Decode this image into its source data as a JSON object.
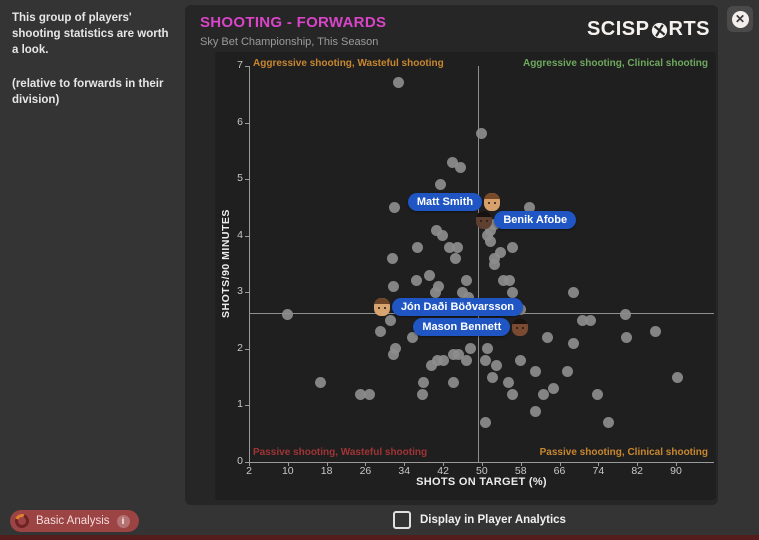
{
  "note": {
    "line1": "This group of players' shooting statistics are worth a look.",
    "line2": "(relative to forwards in their division)"
  },
  "header": {
    "title": "SHOOTING - FORWARDS",
    "subtitle": "Sky Bet Championship, This Season",
    "logo_left": "SCISP",
    "logo_right": "RTS",
    "close_glyph": "✕"
  },
  "chart_data": {
    "type": "scatter",
    "title": "SHOOTING - FORWARDS",
    "subtitle": "Sky Bet Championship, This Season",
    "xlabel": "SHOTS ON TARGET (%)",
    "ylabel": "SHOTS/90 MINUTES",
    "xlim": [
      2,
      97
    ],
    "ylim": [
      0,
      7
    ],
    "x_ticks": [
      2,
      10,
      18,
      26,
      34,
      42,
      50,
      58,
      66,
      74,
      82,
      90
    ],
    "y_ticks": [
      0,
      1,
      2,
      3,
      4,
      5,
      6,
      7
    ],
    "grid": false,
    "mean_lines": {
      "x": 49.1,
      "y": 2.64
    },
    "quadrants": {
      "top_left": "Aggressive shooting, Wasteful shooting",
      "top_right": "Aggressive shooting, Clinical shooting",
      "bottom_left": "Passive shooting, Wasteful shooting",
      "bottom_right": "Passive shooting, Clinical shooting"
    },
    "points": [
      [
        32.9,
        6.7
      ],
      [
        50.0,
        5.8
      ],
      [
        43.9,
        5.3
      ],
      [
        45.5,
        5.2
      ],
      [
        41.4,
        4.9
      ],
      [
        31.9,
        4.5
      ],
      [
        40.6,
        4.1
      ],
      [
        41.8,
        4.0
      ],
      [
        36.8,
        3.8
      ],
      [
        59.9,
        4.5
      ],
      [
        52.7,
        4.2
      ],
      [
        51.1,
        4.0
      ],
      [
        51.7,
        4.1
      ],
      [
        56.4,
        3.8
      ],
      [
        31.5,
        3.6
      ],
      [
        36.6,
        3.2
      ],
      [
        40.4,
        3.0
      ],
      [
        31.7,
        3.1
      ],
      [
        31.1,
        2.5
      ],
      [
        29.0,
        2.3
      ],
      [
        35.8,
        2.2
      ],
      [
        32.1,
        2.0
      ],
      [
        44.9,
        3.8
      ],
      [
        46.9,
        3.2
      ],
      [
        10.0,
        2.6
      ],
      [
        43.4,
        3.8
      ],
      [
        44.5,
        3.6
      ],
      [
        46.1,
        3.0
      ],
      [
        47.2,
        2.9
      ],
      [
        41.0,
        3.1
      ],
      [
        39.3,
        3.3
      ],
      [
        51.8,
        3.9
      ],
      [
        52.7,
        3.6
      ],
      [
        53.8,
        3.7
      ],
      [
        52.7,
        3.5
      ],
      [
        54.4,
        3.2
      ],
      [
        55.6,
        3.2
      ],
      [
        56.4,
        3.0
      ],
      [
        68.8,
        3.0
      ],
      [
        57.9,
        2.7
      ],
      [
        70.7,
        2.5
      ],
      [
        72.3,
        2.5
      ],
      [
        79.5,
        2.6
      ],
      [
        79.9,
        2.2
      ],
      [
        85.7,
        2.3
      ],
      [
        63.6,
        2.2
      ],
      [
        68.8,
        2.1
      ],
      [
        16.8,
        1.4
      ],
      [
        24.9,
        1.2
      ],
      [
        26.9,
        1.2
      ],
      [
        31.7,
        1.9
      ],
      [
        37.7,
        1.2
      ],
      [
        37.9,
        1.4
      ],
      [
        39.7,
        1.7
      ],
      [
        40.8,
        1.8
      ],
      [
        42.0,
        1.8
      ],
      [
        44.1,
        1.9
      ],
      [
        45.1,
        1.9
      ],
      [
        44.1,
        1.4
      ],
      [
        46.9,
        1.8
      ],
      [
        50.7,
        1.8
      ],
      [
        53.1,
        1.7
      ],
      [
        52.1,
        1.5
      ],
      [
        57.9,
        1.8
      ],
      [
        61.0,
        1.6
      ],
      [
        55.4,
        1.4
      ],
      [
        56.4,
        1.2
      ],
      [
        62.6,
        1.2
      ],
      [
        64.7,
        1.3
      ],
      [
        67.6,
        1.6
      ],
      [
        61.0,
        0.9
      ],
      [
        73.8,
        1.2
      ],
      [
        76.0,
        0.7
      ],
      [
        50.7,
        0.7
      ],
      [
        90.3,
        1.5
      ],
      [
        47.6,
        2.0
      ],
      [
        51.1,
        2.0
      ]
    ],
    "players": [
      {
        "name": "Matt Smith",
        "x": 52.1,
        "y": 4.6,
        "label_side": "left",
        "skin": "#d8a06b",
        "hair": "#7a4a28"
      },
      {
        "name": "Benik Afobe",
        "x": 50.5,
        "y": 4.28,
        "label_side": "right",
        "skin": "#5f4030",
        "hair": "#171210"
      },
      {
        "name": "Jón Daði Böðvarsson",
        "x": 29.4,
        "y": 2.74,
        "label_side": "right",
        "skin": "#d8a470",
        "hair": "#6e4526"
      },
      {
        "name": "Mason Bennett",
        "x": 57.9,
        "y": 2.39,
        "label_side": "left",
        "skin": "#7a4a32",
        "hair": "#1a1410"
      }
    ]
  },
  "footer": {
    "button_label": "Basic Analysis",
    "info_glyph": "i",
    "checkbox_label": "Display in Player Analytics",
    "checkbox_checked": false
  },
  "colors": {
    "title_accent": "#d944c8",
    "player_pill": "#1f56c4",
    "quad_top_left": "#c8872f",
    "quad_top_right": "#6fa95e",
    "quad_bottom_left": "#a03434",
    "quad_bottom_right": "#c8872f",
    "dot": "#8d8d8d",
    "button_bg": "#9c4343",
    "bottom_strip": "#551c1c"
  }
}
